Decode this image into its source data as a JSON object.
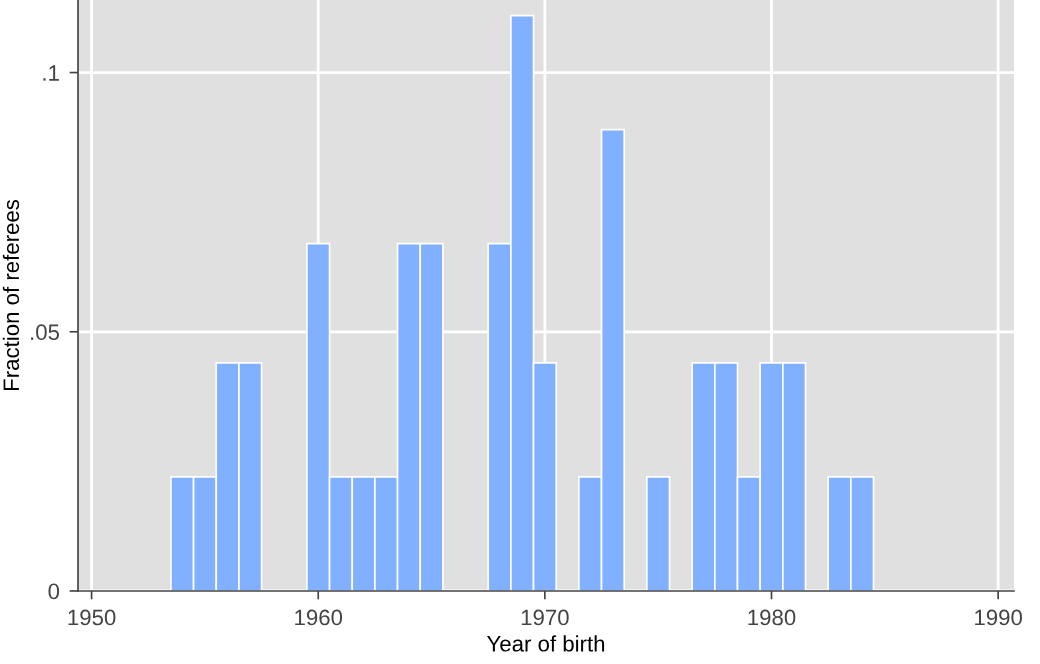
{
  "chart_data": {
    "type": "histogram",
    "xlabel": "Year of birth",
    "ylabel": "Fraction of referees",
    "bins": [
      1953.5,
      1954.5,
      1955.5,
      1956.5,
      1957.5,
      1958.5,
      1959.5,
      1960.5,
      1961.5,
      1962.5,
      1963.5,
      1964.5,
      1965.5,
      1966.5,
      1967.5,
      1968.5,
      1969.5,
      1970.5,
      1971.5,
      1972.5,
      1973.5,
      1974.5,
      1975.5,
      1976.5,
      1977.5,
      1978.5,
      1979.5,
      1980.5,
      1981.5,
      1982.5,
      1983.5,
      1984.5
    ],
    "values": [
      0.022,
      0.022,
      0.044,
      0.044,
      0,
      0,
      0.067,
      0.022,
      0.022,
      0.022,
      0.067,
      0.067,
      0,
      0,
      0.067,
      0.111,
      0.044,
      0,
      0.022,
      0.089,
      0,
      0.022,
      0,
      0.044,
      0.044,
      0.022,
      0.044,
      0.044,
      0,
      0.022,
      0.022
    ],
    "color": "#80b0ff",
    "xlim": [
      1949.4,
      1990.7
    ],
    "ylim": [
      0,
      0.114
    ],
    "xticks": [
      1950,
      1960,
      1970,
      1980,
      1990
    ],
    "yticks": [
      {
        "value": 0,
        "label": "0"
      },
      {
        "value": 0.05,
        "label": ".05"
      },
      {
        "value": 0.1,
        "label": ".1"
      }
    ],
    "grid": true
  }
}
